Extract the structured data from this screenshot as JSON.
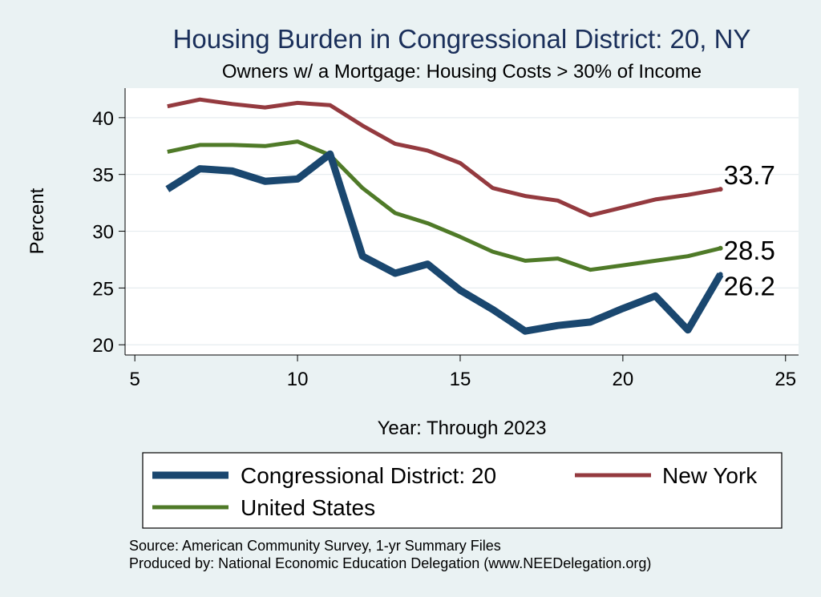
{
  "chart_data": {
    "type": "line",
    "title": "Housing Burden in Congressional District:  20, NY",
    "subtitle": "Owners w/ a Mortgage: Housing Costs > 30% of Income",
    "xlabel": "Year: Through 2023",
    "ylabel": "Percent",
    "xlim": [
      4.7,
      25.4
    ],
    "ylim": [
      19.1,
      42.6
    ],
    "xticks": [
      5,
      10,
      15,
      20,
      25
    ],
    "yticks": [
      20,
      25,
      30,
      35,
      40
    ],
    "grid": true,
    "series": [
      {
        "name": "New York",
        "color": "#943a3f",
        "x": [
          6,
          7,
          8,
          9,
          10,
          11,
          12,
          13,
          14,
          15,
          16,
          17,
          18,
          19,
          20,
          21,
          22,
          23
        ],
        "values": [
          41.0,
          41.6,
          41.2,
          40.9,
          41.3,
          41.1,
          39.3,
          37.7,
          37.1,
          36.0,
          33.8,
          33.1,
          32.7,
          31.4,
          32.1,
          32.8,
          33.2,
          33.7
        ],
        "end_label": "33.7"
      },
      {
        "name": "United States",
        "color": "#4f7a28",
        "x": [
          6,
          7,
          8,
          9,
          10,
          11,
          12,
          13,
          14,
          15,
          16,
          17,
          18,
          19,
          20,
          21,
          22,
          23
        ],
        "values": [
          37.0,
          37.6,
          37.6,
          37.5,
          37.9,
          36.7,
          33.8,
          31.6,
          30.7,
          29.5,
          28.2,
          27.4,
          27.6,
          26.6,
          27.0,
          27.4,
          27.8,
          28.5
        ],
        "end_label": "28.5"
      },
      {
        "name": "Congressional District:  20",
        "color": "#1a476f",
        "x": [
          6,
          7,
          8,
          9,
          10,
          11,
          12,
          13,
          14,
          15,
          16,
          17,
          18,
          19,
          20,
          21,
          22,
          23
        ],
        "values": [
          33.7,
          35.5,
          35.3,
          34.4,
          34.6,
          36.8,
          27.8,
          26.3,
          27.1,
          24.8,
          23.1,
          21.2,
          21.7,
          22.0,
          23.2,
          24.3,
          21.3,
          26.2
        ],
        "end_label": "26.2"
      }
    ],
    "legend": [
      {
        "label": "Congressional District:  20",
        "color": "#1a476f",
        "weight": "thick"
      },
      {
        "label": "New York",
        "color": "#943a3f",
        "weight": "thin"
      },
      {
        "label": "United States",
        "color": "#4f7a28",
        "weight": "thin"
      }
    ],
    "notes": [
      "Source: American Community Survey, 1-yr Summary Files",
      "Produced by: National Economic Education Delegation (www.NEEDelegation.org)"
    ]
  }
}
